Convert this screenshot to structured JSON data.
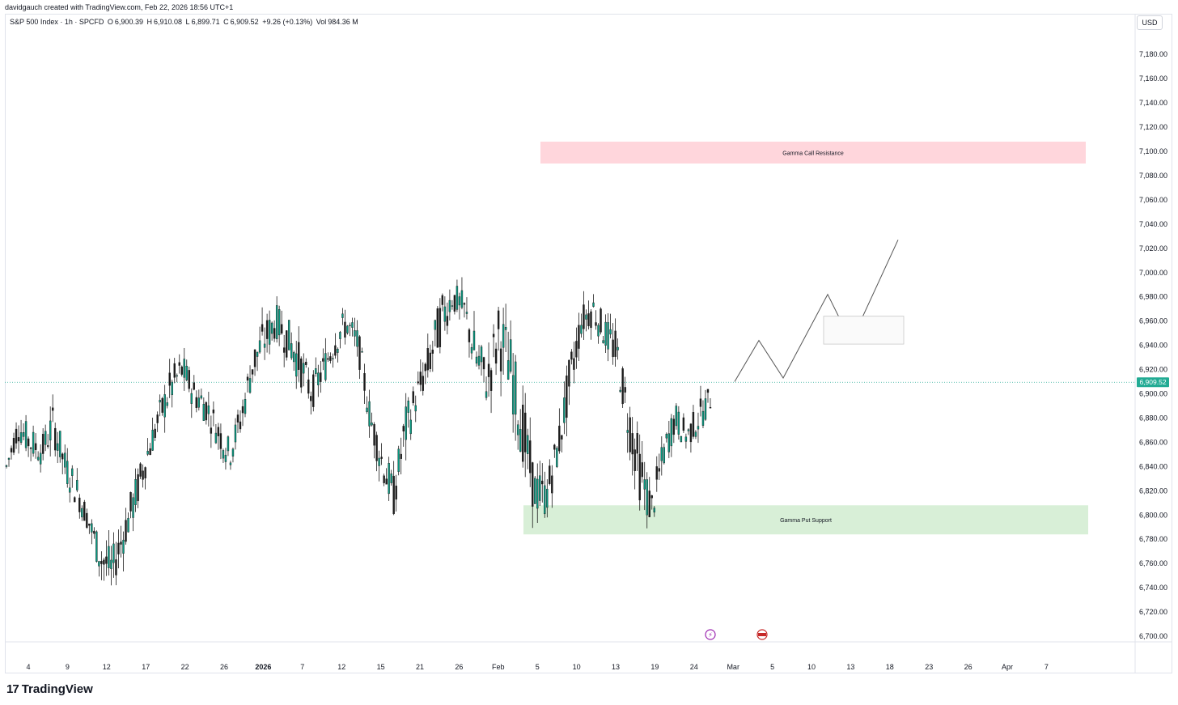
{
  "attribution": "davidgauch created with TradingView.com, Feb 22, 2026 18:56 UTC+1",
  "legend": {
    "symbol": "S&P 500 Index · 1h · SPCFD",
    "open_label": "O",
    "open": "6,900.39",
    "high_label": "H",
    "high": "6,910.08",
    "low_label": "L",
    "low": "6,899.71",
    "close_label": "C",
    "close": "6,909.52",
    "change": "+9.26 (+0.13%)",
    "vol_label": "Vol",
    "volume": "984.36 M"
  },
  "currency": "USD",
  "brand": "TradingView",
  "colors": {
    "up": "#089981",
    "down": "#131722",
    "candle_body": "#1b1b1b",
    "last_price": "#22ab94",
    "resistance_fill": "#ffd6dc",
    "support_fill": "#d8efd7",
    "projection": "#555555"
  },
  "chart_data": {
    "type": "candlestick",
    "symbol": "S&P 500 Index",
    "interval": "1h",
    "ylim": [
      6700,
      7200
    ],
    "last_price": 6909.52,
    "y_ticks": [
      "7,180.00",
      "7,160.00",
      "7,140.00",
      "7,120.00",
      "7,100.00",
      "7,080.00",
      "7,060.00",
      "7,040.00",
      "7,020.00",
      "7,000.00",
      "6,980.00",
      "6,960.00",
      "6,940.00",
      "6,920.00",
      "6,900.00",
      "6,880.00",
      "6,860.00",
      "6,840.00",
      "6,820.00",
      "6,800.00",
      "6,780.00",
      "6,760.00",
      "6,740.00",
      "6,720.00",
      "6,700.00"
    ],
    "x_ticks": [
      "4",
      "9",
      "12",
      "17",
      "22",
      "26",
      "2026",
      "7",
      "12",
      "15",
      "21",
      "26",
      "Feb",
      "5",
      "10",
      "13",
      "19",
      "24",
      "Mar",
      "5",
      "10",
      "13",
      "18",
      "23",
      "26",
      "Apr",
      "7"
    ],
    "price_path": [
      [
        6830,
        6850
      ],
      [
        6855,
        6890
      ],
      [
        6840,
        6880
      ],
      [
        6835,
        6870
      ],
      [
        6850,
        6900
      ],
      [
        6820,
        6860
      ],
      [
        6800,
        6840
      ],
      [
        6780,
        6810
      ],
      [
        6740,
        6790
      ],
      [
        6730,
        6780
      ],
      [
        6760,
        6810
      ],
      [
        6790,
        6840
      ],
      [
        6830,
        6870
      ],
      [
        6860,
        6900
      ],
      [
        6880,
        6930
      ],
      [
        6900,
        6940
      ],
      [
        6880,
        6920
      ],
      [
        6870,
        6910
      ],
      [
        6850,
        6890
      ],
      [
        6830,
        6870
      ],
      [
        6860,
        6900
      ],
      [
        6900,
        6950
      ],
      [
        6920,
        6970
      ],
      [
        6940,
        6980
      ],
      [
        6920,
        6970
      ],
      [
        6900,
        6950
      ],
      [
        6880,
        6920
      ],
      [
        6900,
        6940
      ],
      [
        6920,
        6970
      ],
      [
        6940,
        6975
      ],
      [
        6920,
        6960
      ],
      [
        6860,
        6900
      ],
      [
        6820,
        6870
      ],
      [
        6790,
        6840
      ],
      [
        6840,
        6900
      ],
      [
        6880,
        6920
      ],
      [
        6900,
        6950
      ],
      [
        6930,
        6990
      ],
      [
        6960,
        7000
      ],
      [
        6950,
        6990
      ],
      [
        6900,
        6960
      ],
      [
        6880,
        6940
      ],
      [
        6910,
        6990
      ],
      [
        6880,
        6960
      ],
      [
        6830,
        6910
      ],
      [
        6790,
        6850
      ],
      [
        6790,
        6840
      ],
      [
        6830,
        6880
      ],
      [
        6880,
        6940
      ],
      [
        6940,
        6980
      ],
      [
        6950,
        6990
      ],
      [
        6930,
        6970
      ],
      [
        6910,
        6960
      ],
      [
        6850,
        6910
      ],
      [
        6800,
        6870
      ],
      [
        6780,
        6830
      ],
      [
        6830,
        6870
      ],
      [
        6860,
        6900
      ],
      [
        6850,
        6880
      ],
      [
        6860,
        6900
      ],
      [
        6880,
        6912
      ]
    ],
    "annotations": [
      {
        "label": "Gamma Call Resistance",
        "low": 7090,
        "high": 7108
      },
      {
        "label": "Gamma Put Support",
        "low": 6784,
        "high": 6808
      }
    ],
    "projection_path": [
      6910,
      6944,
      6913,
      6982,
      6943,
      7027
    ],
    "grid": false
  }
}
